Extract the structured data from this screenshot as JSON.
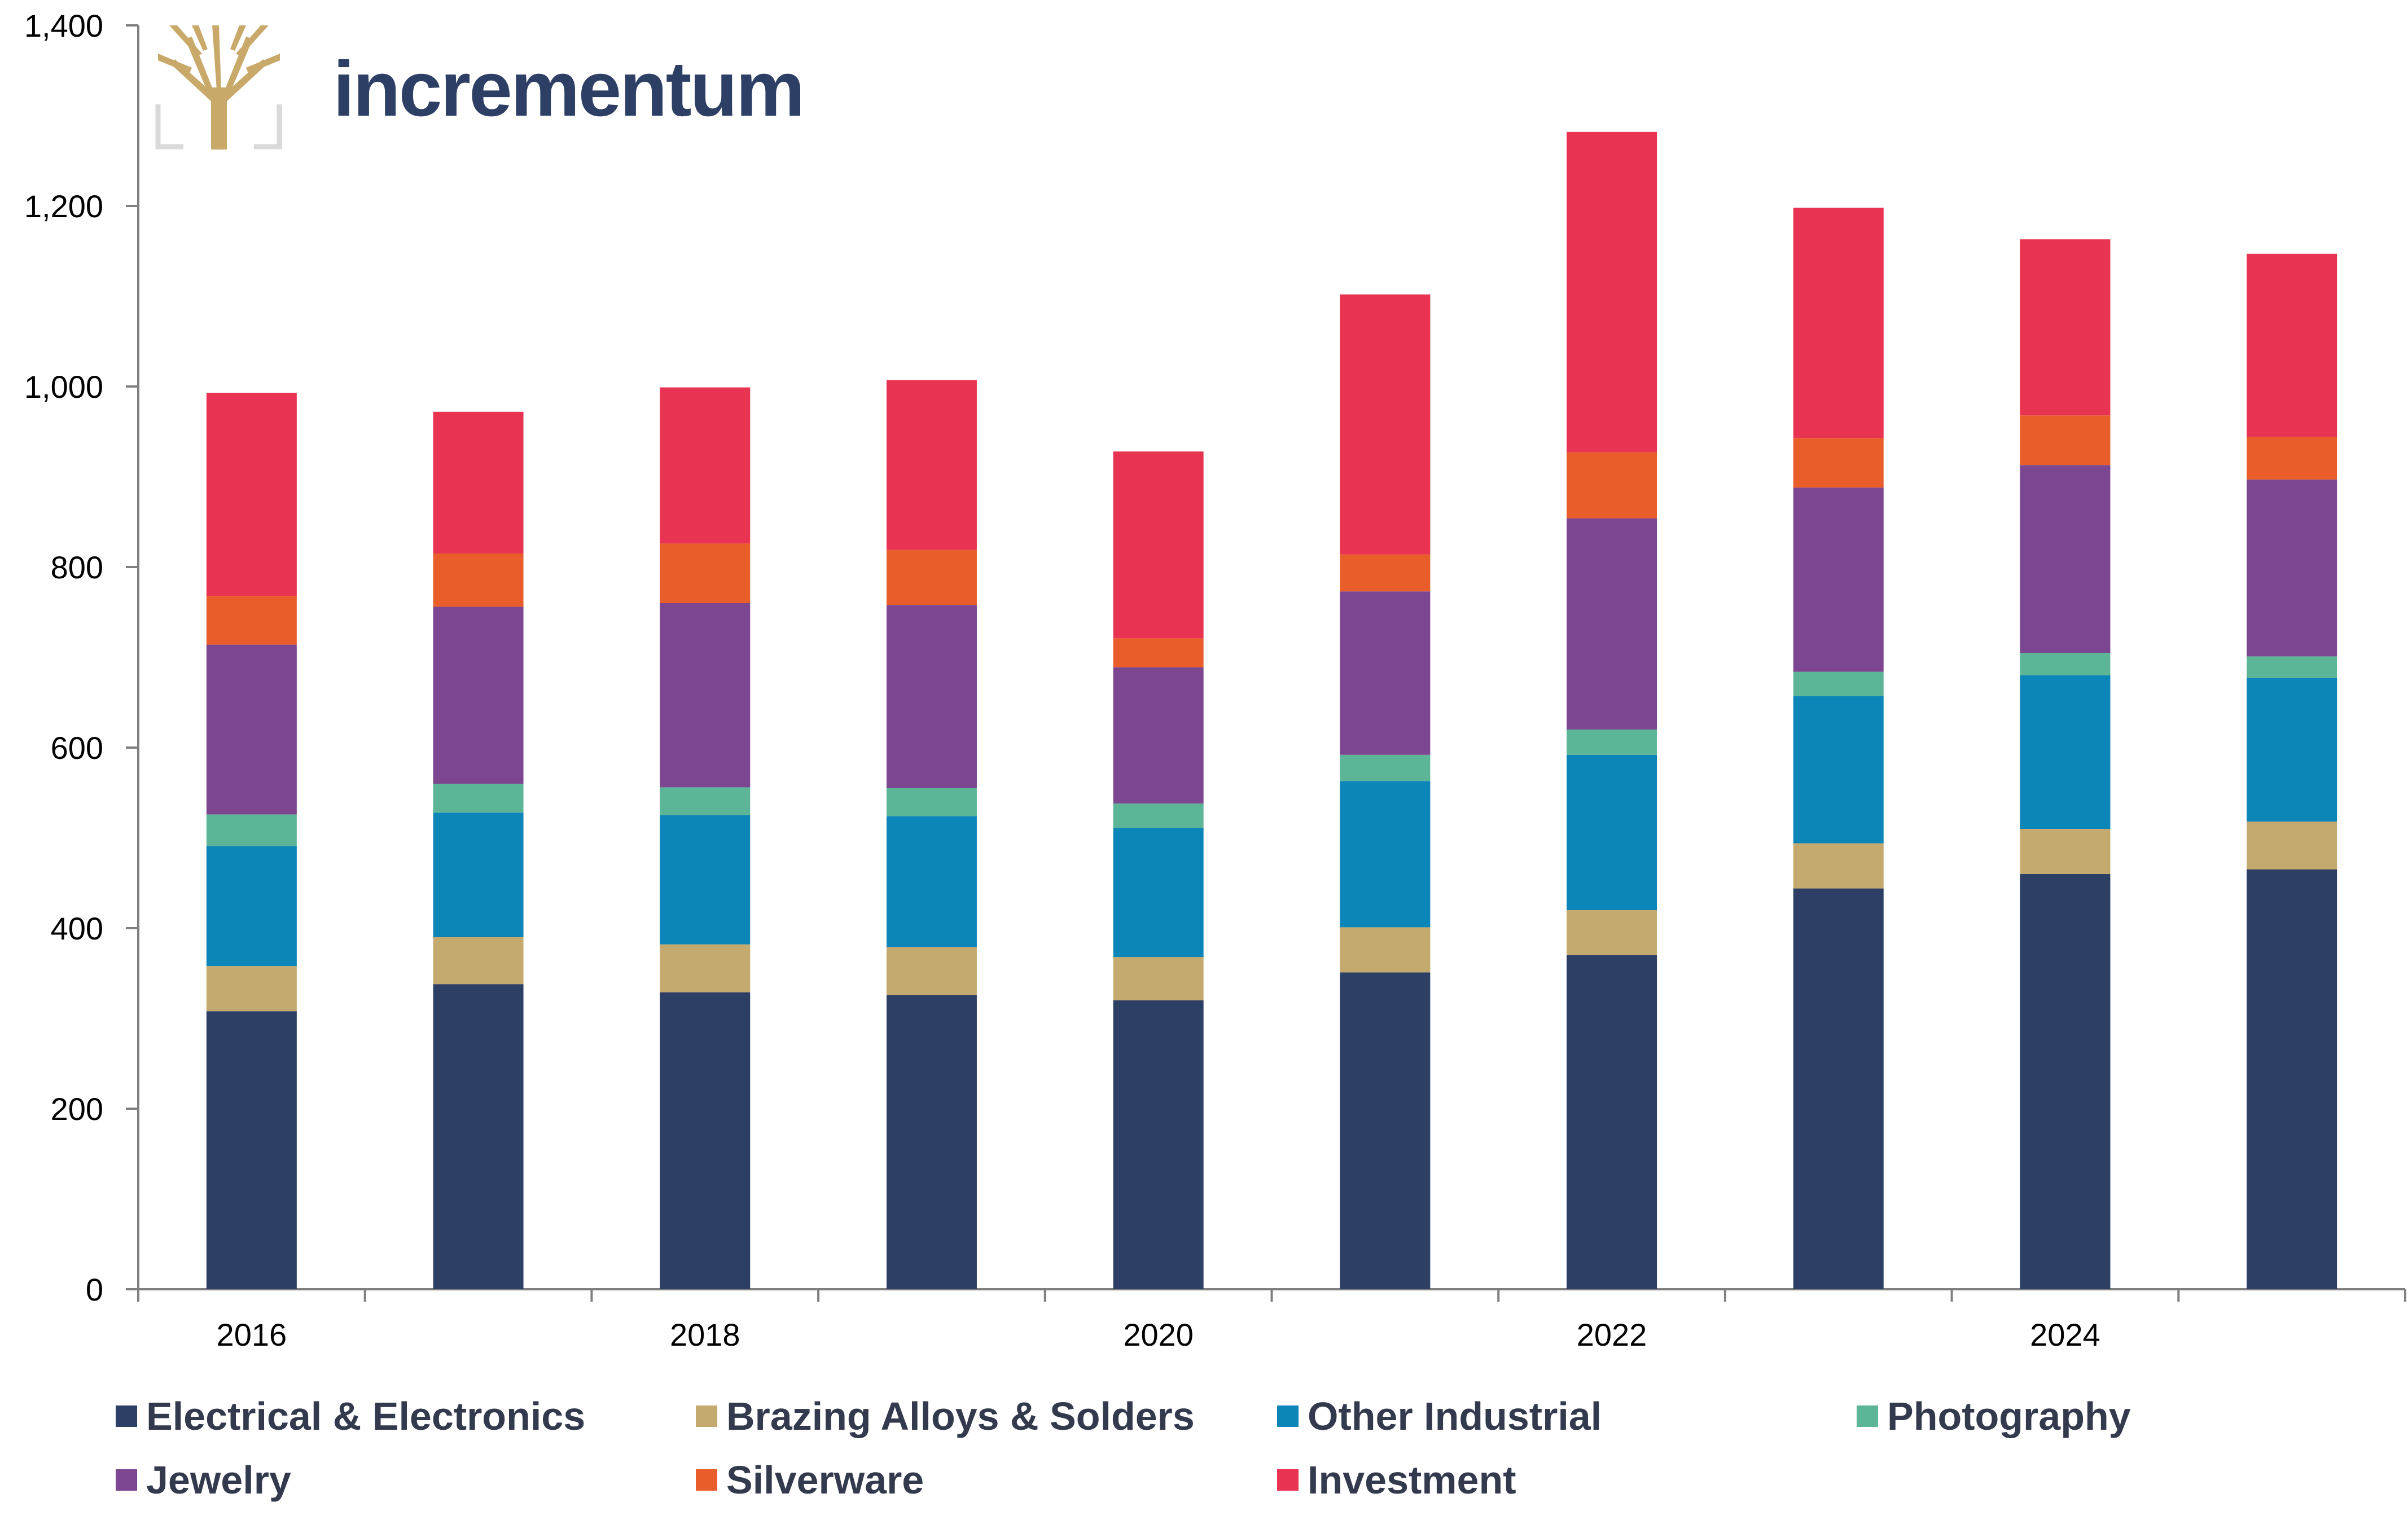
{
  "brand": {
    "name": "incrementum",
    "logo_icon": "tree-logo-icon",
    "logo_color": "#c9a96a"
  },
  "chart_data": {
    "type": "bar",
    "stacked": true,
    "title": "",
    "xlabel": "",
    "ylabel": "",
    "ylim": [
      0,
      1400
    ],
    "yticks": [
      0,
      200,
      400,
      600,
      800,
      1000,
      1200,
      1400
    ],
    "ytick_labels": [
      "0",
      "200",
      "400",
      "600",
      "800",
      "1,000",
      "1,200",
      "1,400"
    ],
    "categories": [
      "2016",
      "2017",
      "2018",
      "2019",
      "2020",
      "2021",
      "2022",
      "2023",
      "2024",
      "2025"
    ],
    "xtick_labels": [
      "2016",
      "",
      "2018",
      "",
      "2020",
      "",
      "2022",
      "",
      "2024",
      ""
    ],
    "grid": false,
    "legend_position": "bottom",
    "series": [
      {
        "name": "Electrical & Electronics",
        "color": "#2e3f66",
        "values": [
          308,
          338,
          329,
          326,
          320,
          351,
          370,
          444,
          460,
          465
        ]
      },
      {
        "name": "Brazing Alloys & Solders",
        "color": "#c4aa6e",
        "values": [
          50,
          52,
          53,
          53,
          48,
          50,
          50,
          50,
          50,
          53
        ]
      },
      {
        "name": "Other Industrial",
        "color": "#0c85b8",
        "values": [
          133,
          138,
          143,
          145,
          143,
          162,
          172,
          163,
          170,
          159
        ]
      },
      {
        "name": "Photography",
        "color": "#5bb596",
        "values": [
          35,
          32,
          31,
          31,
          27,
          29,
          28,
          27,
          25,
          24
        ]
      },
      {
        "name": "Jewelry",
        "color": "#7c4690",
        "values": [
          188,
          196,
          204,
          203,
          151,
          181,
          234,
          204,
          208,
          196
        ]
      },
      {
        "name": "Silverware",
        "color": "#e85d2a",
        "values": [
          54,
          59,
          66,
          61,
          32,
          41,
          73,
          55,
          55,
          47
        ]
      },
      {
        "name": "Investment",
        "color": "#e83352",
        "values": [
          225,
          157,
          173,
          188,
          207,
          288,
          355,
          255,
          195,
          203
        ]
      }
    ]
  }
}
